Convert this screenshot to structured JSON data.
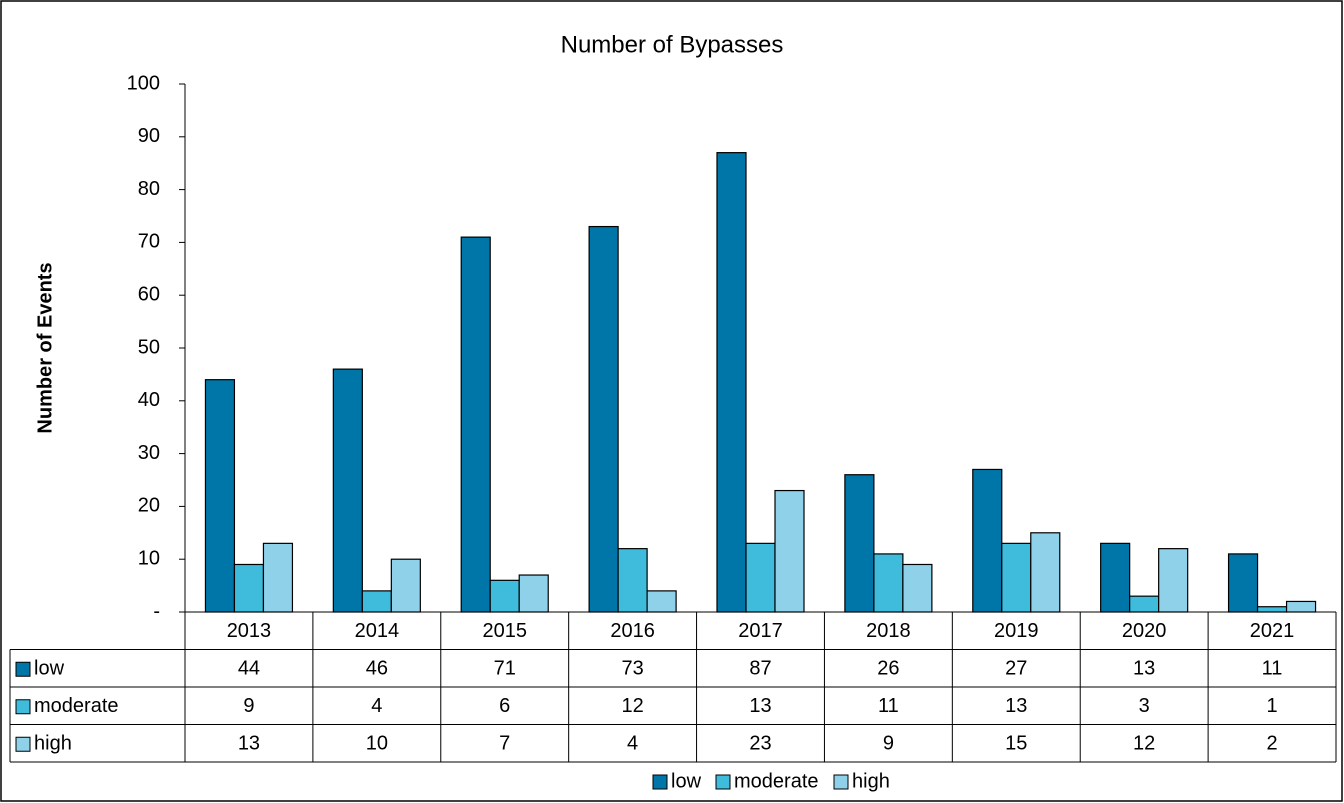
{
  "chart_data": {
    "type": "bar",
    "title": "Number of Bypasses",
    "y_label": "Number of Events",
    "categories": [
      "2013",
      "2014",
      "2015",
      "2016",
      "2017",
      "2018",
      "2019",
      "2020",
      "2021"
    ],
    "series": [
      {
        "name": "low",
        "color": "#0076a8",
        "values": [
          44,
          46,
          71,
          73,
          87,
          26,
          27,
          13,
          11
        ]
      },
      {
        "name": "moderate",
        "color": "#3fbcdc",
        "values": [
          9,
          4,
          6,
          12,
          13,
          11,
          13,
          3,
          1
        ]
      },
      {
        "name": "high",
        "color": "#8fd1e8",
        "values": [
          13,
          10,
          7,
          4,
          23,
          9,
          15,
          12,
          2
        ]
      }
    ],
    "ylim": [
      0,
      100
    ],
    "yticks": [
      {
        "value": 0,
        "label": "-"
      },
      10,
      20,
      30,
      40,
      50,
      60,
      70,
      80,
      90,
      100
    ],
    "grid": false,
    "legend": "bottom",
    "data_table": true
  }
}
